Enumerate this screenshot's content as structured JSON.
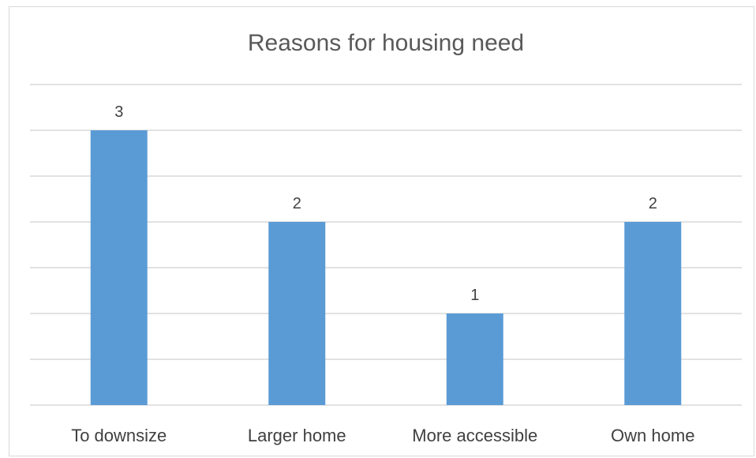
{
  "chart_data": {
    "type": "bar",
    "title": "Reasons for housing need",
    "categories": [
      "To downsize",
      "Larger home",
      "More accessible",
      "Own home"
    ],
    "values": [
      3,
      2,
      1,
      2
    ],
    "data_labels": [
      "3",
      "2",
      "1",
      "2"
    ],
    "xlabel": "",
    "ylabel": "",
    "ylim": [
      0,
      3.5
    ],
    "y_grid_step": 0.5,
    "grid": true,
    "legend": "none",
    "y_tick_labels_visible": false,
    "bar_color": "#5b9bd5",
    "gridline_color": "#d9d9d9",
    "text_color": "#595959"
  }
}
